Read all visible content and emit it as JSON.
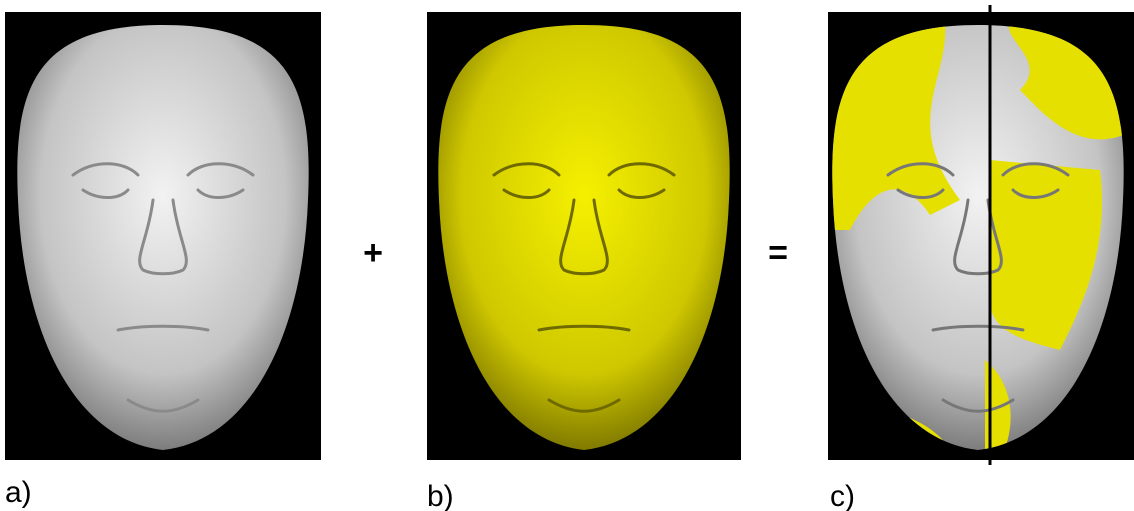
{
  "panels": [
    {
      "label": "a)"
    },
    {
      "label": "b)"
    },
    {
      "label": "c)"
    }
  ],
  "operators": [
    "+",
    "="
  ]
}
